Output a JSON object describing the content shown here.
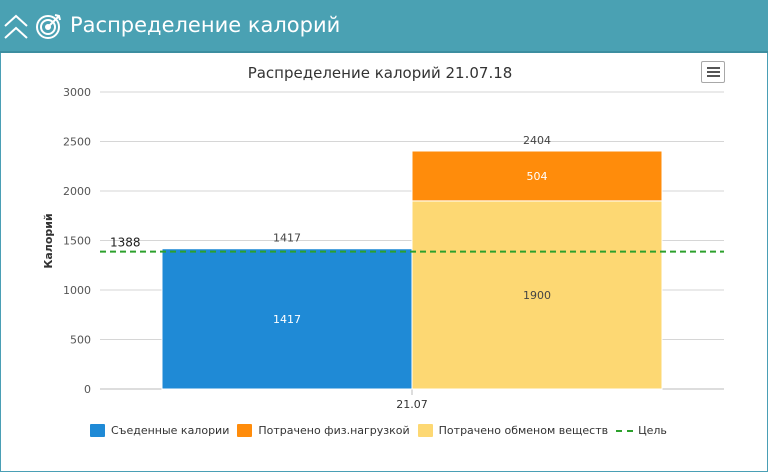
{
  "header": {
    "title": "Распределение калорий",
    "bg_color": "#4aa1b3"
  },
  "icons": {
    "collapse": "chevron-up-double-icon",
    "target": "target-icon",
    "menu": "hamburger-menu-icon"
  },
  "chart_data": {
    "type": "bar",
    "stacked": true,
    "title": "Распределение калорий 21.07.18",
    "ylabel": "Калорий",
    "xlabel": "",
    "categories": [
      "21.07"
    ],
    "ylim": [
      0,
      3000
    ],
    "yticks": [
      0,
      500,
      1000,
      1500,
      2000,
      2500,
      3000
    ],
    "grid": true,
    "legend_position": "bottom",
    "series": [
      {
        "name": "Съеденные калории",
        "color": "#1f8ad6",
        "values": [
          1417
        ],
        "stack": "eaten"
      },
      {
        "name": "Потрачено обменом веществ",
        "color": "#fdd873",
        "values": [
          1900
        ],
        "stack": "spent"
      },
      {
        "name": "Потрачено физ.нагрузкой",
        "color": "#ff8c0b",
        "values": [
          504
        ],
        "stack": "spent"
      }
    ],
    "stack_totals": {
      "eaten": 1417,
      "spent": 2404
    },
    "target_line": {
      "name": "Цель",
      "value": 1388,
      "color": "#2ca02c",
      "style": "dashed"
    }
  },
  "legend": [
    {
      "label": "Съеденные калории",
      "color": "#1f8ad6",
      "kind": "box"
    },
    {
      "label": "Потрачено физ.нагрузкой",
      "color": "#ff8c0b",
      "kind": "box"
    },
    {
      "label": "Потрачено обменом веществ",
      "color": "#fdd873",
      "kind": "box"
    },
    {
      "label": "Цель",
      "color": "#2ca02c",
      "kind": "dash"
    }
  ]
}
